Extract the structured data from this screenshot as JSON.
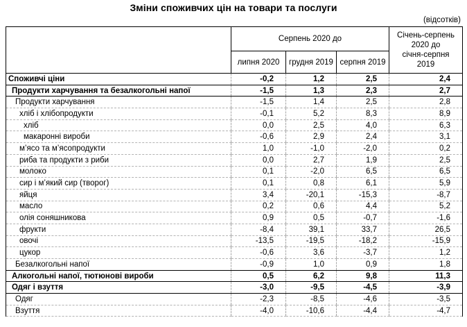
{
  "title": "Зміни споживчих цін на товари та послуги",
  "units_note": "(відсотків)",
  "table": {
    "col_group_header": "Серпень 2020 до",
    "sub_headers": [
      "липня 2020",
      "грудня 2019",
      "серпня 2019"
    ],
    "period_header": "Січень-серпень\n2020 до\nсічня-серпня\n2019",
    "rows": [
      {
        "label": "Споживчі ціни",
        "indent": 0,
        "bold": true,
        "solid_bottom": true,
        "values": [
          "-0,2",
          "1,2",
          "2,5",
          "2,4"
        ]
      },
      {
        "label": "Продукти харчування та безалкогольні напої",
        "indent": 1,
        "bold": true,
        "solid_bottom": true,
        "values": [
          "-1,5",
          "1,3",
          "2,3",
          "2,7"
        ]
      },
      {
        "label": "Продукти харчування",
        "indent": 2,
        "bold": false,
        "solid_bottom": false,
        "values": [
          "-1,5",
          "1,4",
          "2,5",
          "2,8"
        ]
      },
      {
        "label": "хліб і хлібопродукти",
        "indent": 3,
        "bold": false,
        "solid_bottom": false,
        "values": [
          "-0,1",
          "5,2",
          "8,3",
          "8,9"
        ]
      },
      {
        "label": "хліб",
        "indent": 4,
        "bold": false,
        "solid_bottom": false,
        "values": [
          "0,0",
          "2,5",
          "4,0",
          "6,3"
        ]
      },
      {
        "label": "макаронні вироби",
        "indent": 4,
        "bold": false,
        "solid_bottom": false,
        "values": [
          "-0,6",
          "2,9",
          "2,4",
          "3,1"
        ]
      },
      {
        "label": "м’ясо та м’ясопродукти",
        "indent": 3,
        "bold": false,
        "solid_bottom": false,
        "values": [
          "1,0",
          "-1,0",
          "-2,0",
          "0,2"
        ]
      },
      {
        "label": "риба та продукти з риби",
        "indent": 3,
        "bold": false,
        "solid_bottom": false,
        "values": [
          "0,0",
          "2,7",
          "1,9",
          "2,5"
        ]
      },
      {
        "label": "молоко",
        "indent": 3,
        "bold": false,
        "solid_bottom": false,
        "values": [
          "0,1",
          "-2,0",
          "6,5",
          "6,5"
        ]
      },
      {
        "label": "сир і м’який сир (творог)",
        "indent": 3,
        "bold": false,
        "solid_bottom": false,
        "values": [
          "0,1",
          "0,8",
          "6,1",
          "5,9"
        ]
      },
      {
        "label": "яйця",
        "indent": 3,
        "bold": false,
        "solid_bottom": false,
        "values": [
          "3,4",
          "-20,1",
          "-15,3",
          "-8,7"
        ]
      },
      {
        "label": "масло",
        "indent": 3,
        "bold": false,
        "solid_bottom": false,
        "values": [
          "0,2",
          "0,6",
          "4,4",
          "5,2"
        ]
      },
      {
        "label": "олія соняшникова",
        "indent": 3,
        "bold": false,
        "solid_bottom": false,
        "values": [
          "0,9",
          "0,5",
          "-0,7",
          "-1,6"
        ]
      },
      {
        "label": "фрукти",
        "indent": 3,
        "bold": false,
        "solid_bottom": false,
        "values": [
          "-8,4",
          "39,1",
          "33,7",
          "26,5"
        ]
      },
      {
        "label": "овочі",
        "indent": 3,
        "bold": false,
        "solid_bottom": false,
        "values": [
          "-13,5",
          "-19,5",
          "-18,2",
          "-15,9"
        ]
      },
      {
        "label": "цукор",
        "indent": 3,
        "bold": false,
        "solid_bottom": false,
        "values": [
          "-0,6",
          "3,6",
          "-3,7",
          "1,2"
        ]
      },
      {
        "label": "Безалкогольні напої",
        "indent": 2,
        "bold": false,
        "solid_bottom": true,
        "values": [
          "-0,9",
          "1,0",
          "0,9",
          "1,8"
        ]
      },
      {
        "label": "Алкогольні напої, тютюнові вироби",
        "indent": 1,
        "bold": true,
        "solid_bottom": true,
        "values": [
          "0,5",
          "6,2",
          "9,8",
          "11,3"
        ]
      },
      {
        "label": "Одяг і взуття",
        "indent": 1,
        "bold": true,
        "solid_bottom": true,
        "values": [
          "-3,0",
          "-9,5",
          "-4,5",
          "-3,9"
        ]
      },
      {
        "label": "Одяг",
        "indent": 2,
        "bold": false,
        "solid_bottom": false,
        "values": [
          "-2,3",
          "-8,5",
          "-4,6",
          "-3,5"
        ]
      },
      {
        "label": "Взуття",
        "indent": 2,
        "bold": false,
        "solid_bottom": false,
        "values": [
          "-4,0",
          "-10,6",
          "-4,4",
          "-4,7"
        ]
      }
    ]
  }
}
